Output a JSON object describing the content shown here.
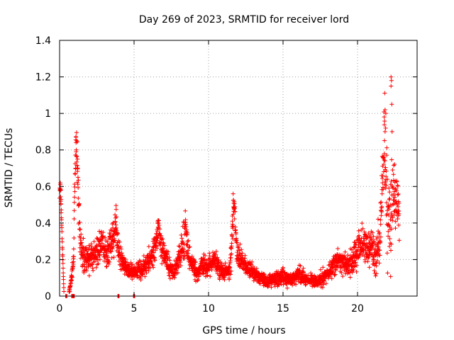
{
  "chart_data": {
    "type": "scatter",
    "title": "Day 269 of 2023, SRMTID for receiver lord",
    "xlabel": "GPS time / hours",
    "ylabel": "SRMTID / TECUs",
    "xlim": [
      0,
      24
    ],
    "ylim": [
      0,
      1.4
    ],
    "xticks": [
      0,
      5,
      10,
      15,
      20
    ],
    "xtick_labels": [
      "0",
      "5",
      "10",
      "15",
      "20"
    ],
    "yticks": [
      0,
      0.2,
      0.4,
      0.6,
      0.8,
      1,
      1.2,
      1.4
    ],
    "ytick_labels": [
      "0",
      "0.2",
      "0.4",
      "0.6",
      "0.8",
      "1",
      "1.2",
      "1.4"
    ],
    "grid": true,
    "marker": "+",
    "color": "#ff0000",
    "series": [
      {
        "name": "SRMTID",
        "profile_x": [
          0.0,
          0.05,
          0.3,
          0.6,
          0.8,
          0.95,
          1.0,
          1.1,
          1.2,
          1.3,
          1.4,
          1.6,
          1.8,
          2.0,
          2.3,
          2.6,
          2.9,
          3.2,
          3.5,
          3.8,
          3.9,
          4.1,
          4.4,
          4.8,
          5.1,
          5.5,
          5.8,
          6.1,
          6.4,
          6.6,
          6.8,
          7.1,
          7.4,
          7.7,
          8.0,
          8.3,
          8.5,
          8.7,
          9.0,
          9.3,
          9.6,
          9.9,
          10.2,
          10.5,
          10.8,
          11.1,
          11.4,
          11.6,
          11.7,
          11.9,
          12.2,
          12.5,
          12.8,
          13.1,
          13.4,
          13.7,
          14.0,
          14.3,
          14.6,
          14.9,
          15.2,
          15.5,
          15.8,
          16.1,
          16.4,
          16.7,
          17.0,
          17.3,
          17.6,
          17.9,
          18.2,
          18.5,
          18.8,
          19.1,
          19.4,
          19.7,
          20.0,
          20.3,
          20.6,
          20.9,
          21.2,
          21.5,
          21.8,
          22.0,
          22.2,
          22.4,
          22.6,
          22.8
        ],
        "profile_center": [
          0.57,
          0.6,
          0.0,
          0.0,
          0.1,
          0.2,
          0.6,
          0.82,
          0.7,
          0.45,
          0.25,
          0.22,
          0.2,
          0.2,
          0.22,
          0.25,
          0.28,
          0.22,
          0.3,
          0.4,
          0.28,
          0.2,
          0.16,
          0.14,
          0.13,
          0.15,
          0.17,
          0.2,
          0.25,
          0.38,
          0.28,
          0.22,
          0.15,
          0.13,
          0.2,
          0.3,
          0.35,
          0.2,
          0.15,
          0.13,
          0.17,
          0.15,
          0.18,
          0.2,
          0.14,
          0.14,
          0.14,
          0.35,
          0.55,
          0.22,
          0.2,
          0.16,
          0.15,
          0.12,
          0.1,
          0.09,
          0.08,
          0.09,
          0.1,
          0.11,
          0.1,
          0.09,
          0.1,
          0.12,
          0.1,
          0.09,
          0.08,
          0.08,
          0.1,
          0.12,
          0.15,
          0.18,
          0.2,
          0.18,
          0.17,
          0.2,
          0.25,
          0.3,
          0.25,
          0.28,
          0.22,
          0.3,
          0.9,
          0.45,
          0.4,
          0.55,
          0.5,
          0.45
        ],
        "profile_spread": [
          0.04,
          0.03,
          0.0,
          0.0,
          0.03,
          0.05,
          0.1,
          0.08,
          0.12,
          0.1,
          0.1,
          0.08,
          0.07,
          0.06,
          0.07,
          0.08,
          0.08,
          0.07,
          0.09,
          0.1,
          0.08,
          0.06,
          0.05,
          0.05,
          0.04,
          0.05,
          0.05,
          0.06,
          0.08,
          0.08,
          0.08,
          0.06,
          0.05,
          0.04,
          0.06,
          0.09,
          0.1,
          0.06,
          0.05,
          0.04,
          0.05,
          0.05,
          0.05,
          0.06,
          0.04,
          0.04,
          0.04,
          0.12,
          0.06,
          0.07,
          0.06,
          0.05,
          0.05,
          0.04,
          0.03,
          0.03,
          0.03,
          0.03,
          0.04,
          0.04,
          0.04,
          0.03,
          0.04,
          0.04,
          0.04,
          0.03,
          0.03,
          0.03,
          0.04,
          0.04,
          0.05,
          0.06,
          0.06,
          0.06,
          0.06,
          0.07,
          0.08,
          0.1,
          0.08,
          0.1,
          0.1,
          0.12,
          0.2,
          0.25,
          0.25,
          0.2,
          0.15,
          0.12
        ],
        "zero_points_x": [
          0.45,
          0.85,
          0.95,
          3.95,
          5.0
        ],
        "outliers": [
          [
            22.25,
            1.2
          ],
          [
            22.28,
            1.18
          ],
          [
            22.25,
            1.15
          ],
          [
            22.3,
            1.05
          ],
          [
            22.32,
            0.9
          ],
          [
            21.85,
            1.02
          ],
          [
            21.9,
            1.0
          ],
          [
            21.85,
            0.9
          ],
          [
            21.8,
            0.78
          ],
          [
            1.1,
            0.87
          ],
          [
            1.15,
            0.85
          ],
          [
            1.2,
            0.75
          ],
          [
            11.65,
            0.56
          ],
          [
            11.7,
            0.48
          ],
          [
            0.05,
            0.61
          ],
          [
            0.08,
            0.58
          ],
          [
            0.1,
            0.53
          ]
        ],
        "n_points": 2600
      }
    ]
  }
}
